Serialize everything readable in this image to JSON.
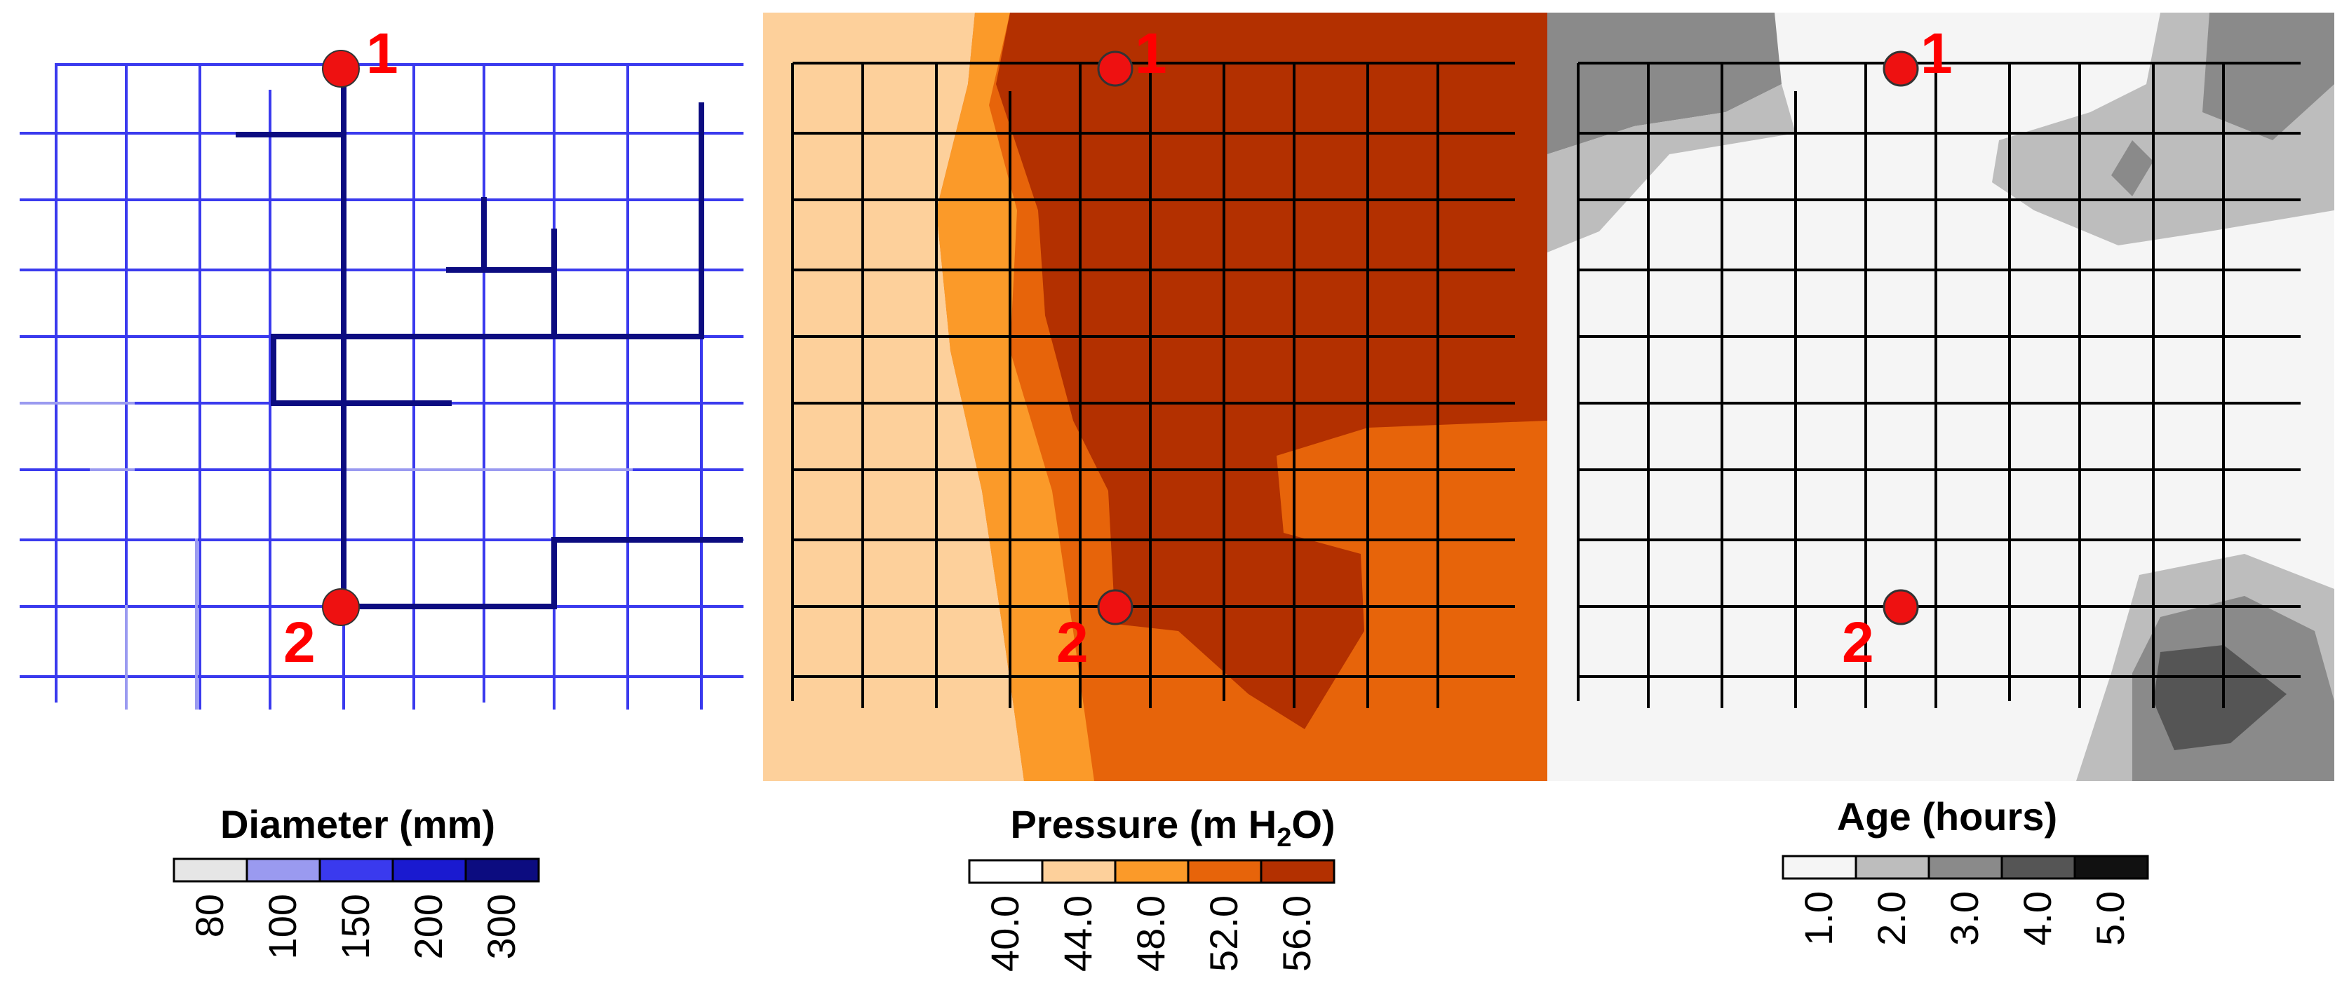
{
  "panels": {
    "diameter": {
      "legend_title": "Diameter (mm)",
      "ticks": [
        "80",
        "100",
        "150",
        "200",
        "300"
      ],
      "colors": [
        "#e6e6e6",
        "#9a9af0",
        "#3a3aee",
        "#1a1ad0",
        "#0c0c80"
      ]
    },
    "pressure": {
      "legend_title_main": "Pressure (m H",
      "legend_title_sub": "2",
      "legend_title_end": "O)",
      "ticks": [
        "40.0",
        "44.0",
        "48.0",
        "52.0",
        "56.0"
      ],
      "colors": [
        "#ffffff",
        "#fdd09b",
        "#fb9a29",
        "#e7640a",
        "#b33000"
      ]
    },
    "age": {
      "legend_title": "Age (hours)",
      "ticks": [
        "1.0",
        "2.0",
        "3.0",
        "4.0",
        "5.0"
      ],
      "colors": [
        "#f5f5f5",
        "#bdbdbd",
        "#8a8a8a",
        "#555555",
        "#111111"
      ]
    }
  },
  "nodes": [
    {
      "label": "1"
    },
    {
      "label": "2"
    }
  ],
  "colors": {
    "node_fill": "#ee1111",
    "node_label": "#ff0000",
    "pipe_black": "#000000"
  }
}
